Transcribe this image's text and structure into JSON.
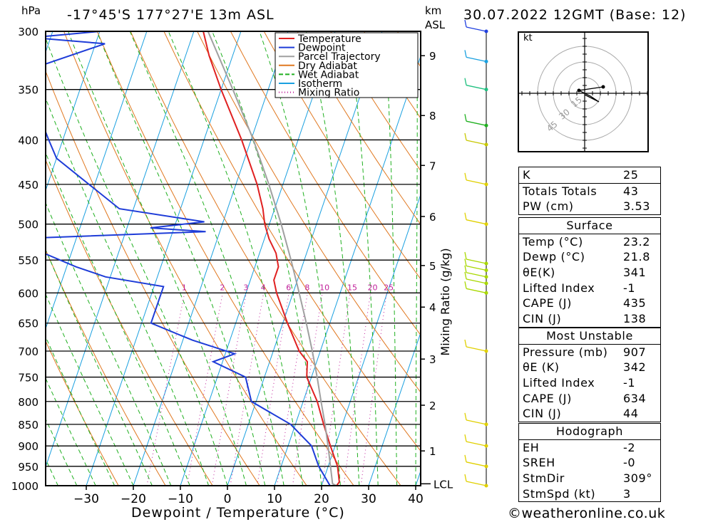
{
  "header": {
    "location": "-17°45'S  177°27'E  13m  ASL",
    "datetime": "30.07.2022  12GMT  (Base: 12)"
  },
  "axes": {
    "pressure_unit": "hPa",
    "height_unit": "km",
    "height_ref": "ASL",
    "xlabel": "Dewpoint / Temperature (°C)",
    "mixing_ratio_label": "Mixing Ratio (g/kg)",
    "lcl_label": "LCL"
  },
  "legend": [
    "Temperature",
    "Dewpoint",
    "Parcel Trajectory",
    "Dry Adiabat",
    "Wet Adiabat",
    "Isotherm",
    "Mixing Ratio"
  ],
  "colors": {
    "temperature": "#e02020",
    "dewpoint": "#1e3cd8",
    "parcel": "#a0a0a0",
    "dry_adiabat": "#e07820",
    "wet_adiabat": "#20b020",
    "isotherm": "#1aa0e0",
    "mixing_ratio": "#c0209a"
  },
  "chart_data": {
    "type": "line",
    "title": "",
    "xlabel": "Dewpoint / Temperature (°C)",
    "ylabel": "hPa",
    "pressure_levels": [
      300,
      350,
      400,
      450,
      500,
      550,
      600,
      650,
      700,
      750,
      800,
      850,
      900,
      950,
      1000
    ],
    "temperature_ticks": [
      -30,
      -20,
      -10,
      0,
      10,
      20,
      30,
      40
    ],
    "xlim": [
      -40,
      40
    ],
    "ylim": [
      1000,
      300
    ],
    "height_ticks_km": [
      {
        "label": "9",
        "p": 320
      },
      {
        "label": "8",
        "p": 375
      },
      {
        "label": "7",
        "p": 428
      },
      {
        "label": "6",
        "p": 490
      },
      {
        "label": "5",
        "p": 558
      },
      {
        "label": "4",
        "p": 623
      },
      {
        "label": "3",
        "p": 715
      },
      {
        "label": "2",
        "p": 808
      },
      {
        "label": "1",
        "p": 912
      }
    ],
    "lcl_pressure": 995,
    "mixing_ratio_lines": [
      "1",
      "2",
      "3",
      "4",
      "6",
      "8",
      "10",
      "15",
      "20",
      "25"
    ],
    "series": [
      {
        "name": "Temperature",
        "points": [
          {
            "p": 1000,
            "t": 23.2
          },
          {
            "p": 990,
            "t": 23.5
          },
          {
            "p": 950,
            "t": 22
          },
          {
            "p": 900,
            "t": 19
          },
          {
            "p": 850,
            "t": 16
          },
          {
            "p": 800,
            "t": 13
          },
          {
            "p": 750,
            "t": 9
          },
          {
            "p": 720,
            "t": 8
          },
          {
            "p": 700,
            "t": 5.5
          },
          {
            "p": 650,
            "t": 1
          },
          {
            "p": 600,
            "t": -3.5
          },
          {
            "p": 580,
            "t": -5
          },
          {
            "p": 560,
            "t": -5
          },
          {
            "p": 540,
            "t": -6.5
          },
          {
            "p": 520,
            "t": -9
          },
          {
            "p": 500,
            "t": -11
          },
          {
            "p": 480,
            "t": -12.5
          },
          {
            "p": 450,
            "t": -15.5
          },
          {
            "p": 400,
            "t": -22
          },
          {
            "p": 350,
            "t": -30
          },
          {
            "p": 320,
            "t": -35
          },
          {
            "p": 300,
            "t": -38
          }
        ]
      },
      {
        "name": "Dewpoint",
        "points": [
          {
            "p": 1000,
            "t": 21.8
          },
          {
            "p": 950,
            "t": 18
          },
          {
            "p": 900,
            "t": 15
          },
          {
            "p": 850,
            "t": 9
          },
          {
            "p": 800,
            "t": -1
          },
          {
            "p": 750,
            "t": -4
          },
          {
            "p": 720,
            "t": -12
          },
          {
            "p": 705,
            "t": -8
          },
          {
            "p": 680,
            "t": -18
          },
          {
            "p": 650,
            "t": -28
          },
          {
            "p": 590,
            "t": -28
          },
          {
            "p": 575,
            "t": -41
          },
          {
            "p": 560,
            "t": -48
          },
          {
            "p": 520,
            "t": -64
          },
          {
            "p": 510,
            "t": -23
          },
          {
            "p": 505,
            "t": -35
          },
          {
            "p": 497,
            "t": -24
          },
          {
            "p": 480,
            "t": -43
          },
          {
            "p": 420,
            "t": -60
          },
          {
            "p": 400,
            "t": -63
          },
          {
            "p": 380,
            "t": -66
          },
          {
            "p": 330,
            "t": -71
          },
          {
            "p": 310,
            "t": -58
          },
          {
            "p": 305,
            "t": -74
          },
          {
            "p": 300,
            "t": -60
          }
        ]
      },
      {
        "name": "Parcel Trajectory",
        "points": [
          {
            "p": 1000,
            "t": 23.2
          },
          {
            "p": 995,
            "t": 22.2
          },
          {
            "p": 950,
            "t": 20.5
          },
          {
            "p": 900,
            "t": 18.5
          },
          {
            "p": 850,
            "t": 16.3
          },
          {
            "p": 800,
            "t": 13.8
          },
          {
            "p": 750,
            "t": 11.2
          },
          {
            "p": 700,
            "t": 8.3
          },
          {
            "p": 650,
            "t": 5
          },
          {
            "p": 600,
            "t": 1.3
          },
          {
            "p": 550,
            "t": -2.8
          },
          {
            "p": 500,
            "t": -7.5
          },
          {
            "p": 450,
            "t": -13
          },
          {
            "p": 400,
            "t": -19.5
          },
          {
            "p": 350,
            "t": -27.5
          },
          {
            "p": 300,
            "t": -37
          }
        ]
      }
    ],
    "wind_barbs": [
      {
        "p": 300,
        "color": "#2040e0"
      },
      {
        "p": 325,
        "color": "#1aa0e0"
      },
      {
        "p": 350,
        "color": "#20c080"
      },
      {
        "p": 385,
        "color": "#20b020"
      },
      {
        "p": 405,
        "color": "#c8c800"
      },
      {
        "p": 450,
        "color": "#e0d000"
      },
      {
        "p": 500,
        "color": "#e0d000"
      },
      {
        "p": 555,
        "color": "#a8d800"
      },
      {
        "p": 565,
        "color": "#a8d800"
      },
      {
        "p": 575,
        "color": "#a8d800"
      },
      {
        "p": 585,
        "color": "#a8d800"
      },
      {
        "p": 600,
        "color": "#a8d800"
      },
      {
        "p": 700,
        "color": "#e0d000"
      },
      {
        "p": 850,
        "color": "#e0d000"
      },
      {
        "p": 900,
        "color": "#e0d000"
      },
      {
        "p": 950,
        "color": "#e0d000"
      },
      {
        "p": 1000,
        "color": "#e0d000"
      }
    ],
    "hodograph": {
      "unit": "kt",
      "rings": [
        "15",
        "30",
        "45"
      ]
    }
  },
  "indices_table": {
    "rows": [
      {
        "label": "K",
        "value": "25"
      },
      {
        "label": "Totals Totals",
        "value": "43"
      },
      {
        "label": "PW (cm)",
        "value": "3.53"
      }
    ]
  },
  "surface_table": {
    "title": "Surface",
    "rows": [
      {
        "label": "Temp (°C)",
        "value": "23.2"
      },
      {
        "label": "Dewp (°C)",
        "value": "21.8"
      },
      {
        "label": "θE(K)",
        "value": "341"
      },
      {
        "label": "Lifted Index",
        "value": "-1"
      },
      {
        "label": "CAPE (J)",
        "value": "435"
      },
      {
        "label": "CIN (J)",
        "value": "138"
      }
    ]
  },
  "most_unstable_table": {
    "title": "Most Unstable",
    "rows": [
      {
        "label": "Pressure (mb)",
        "value": "907"
      },
      {
        "label": "θE (K)",
        "value": "342"
      },
      {
        "label": "Lifted Index",
        "value": "-1"
      },
      {
        "label": "CAPE (J)",
        "value": "634"
      },
      {
        "label": "CIN (J)",
        "value": "44"
      }
    ]
  },
  "hodograph_table": {
    "title": "Hodograph",
    "rows": [
      {
        "label": "EH",
        "value": "-2"
      },
      {
        "label": "SREH",
        "value": "-0"
      },
      {
        "label": "StmDir",
        "value": "309°"
      },
      {
        "label": "StmSpd (kt)",
        "value": "3"
      }
    ]
  },
  "footer": "©weatheronline.co.uk"
}
